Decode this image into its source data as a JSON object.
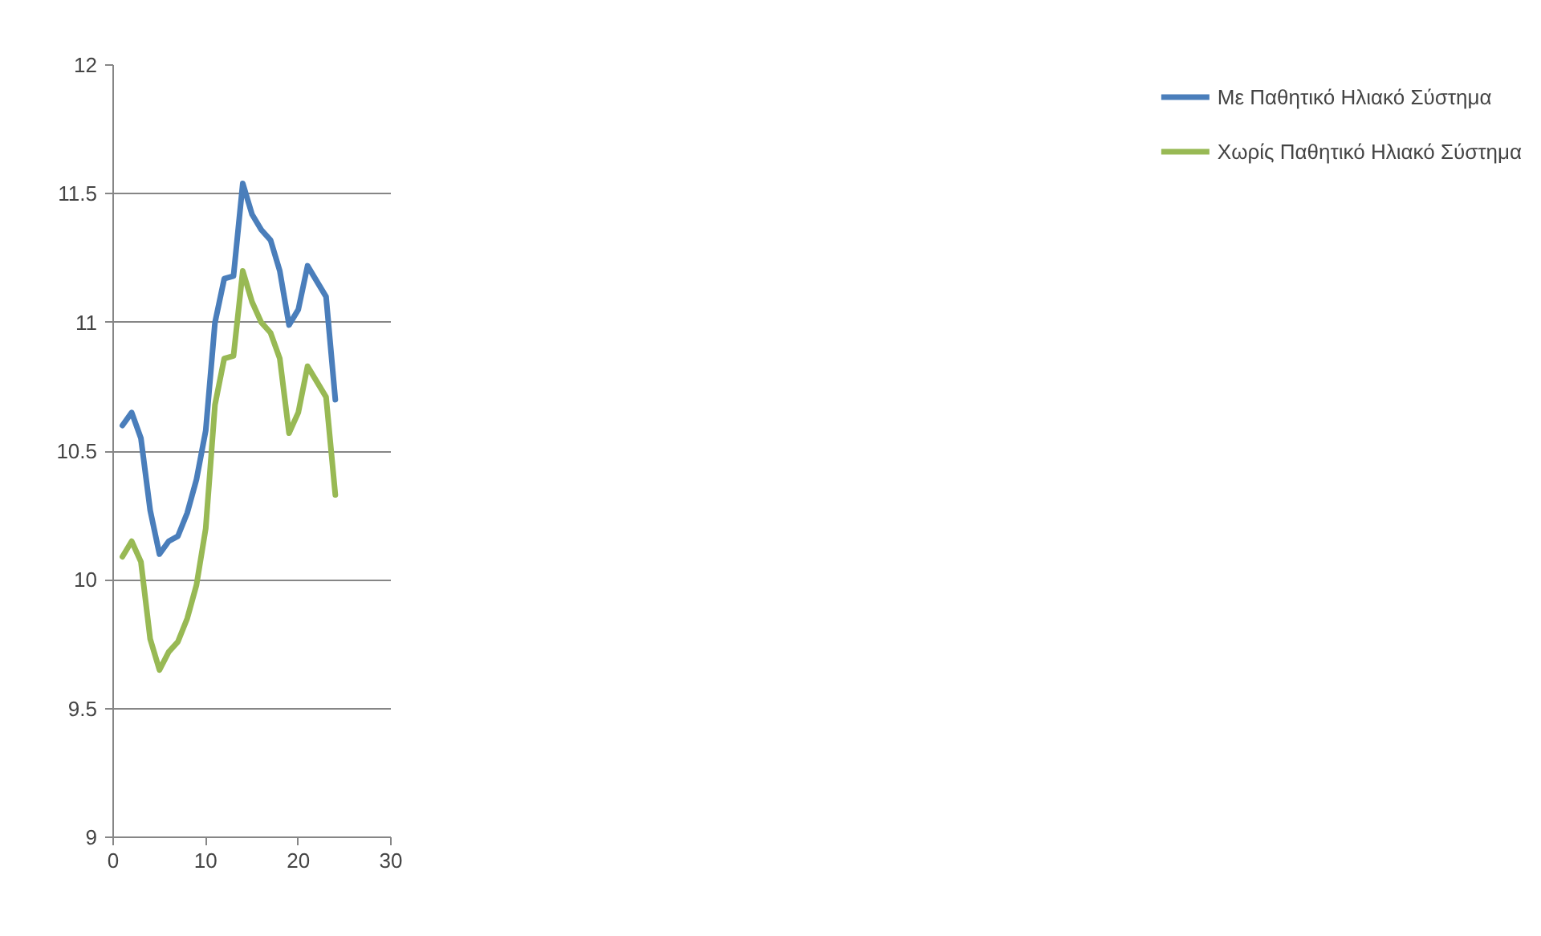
{
  "chart_data": {
    "type": "line",
    "x": [
      1,
      2,
      3,
      4,
      5,
      6,
      7,
      8,
      9,
      10,
      11,
      12,
      13,
      14,
      15,
      16,
      17,
      18,
      19,
      20,
      21,
      22,
      23,
      24
    ],
    "series": [
      {
        "name": "Με Παθητικό Ηλιακό Σύστημα",
        "color": "#4a7ebb",
        "values": [
          10.6,
          10.65,
          10.55,
          10.27,
          10.1,
          10.15,
          10.17,
          10.26,
          10.39,
          10.58,
          11.0,
          11.17,
          11.18,
          11.54,
          11.42,
          11.36,
          11.32,
          11.2,
          10.99,
          11.05,
          11.22,
          11.16,
          11.1,
          10.7
        ]
      },
      {
        "name": "Χωρίς Παθητικό Ηλιακό Σύστημα",
        "color": "#98b954",
        "values": [
          10.09,
          10.15,
          10.07,
          9.77,
          9.65,
          9.72,
          9.76,
          9.85,
          9.98,
          10.2,
          10.68,
          10.86,
          10.87,
          11.2,
          11.08,
          11.0,
          10.96,
          10.86,
          10.57,
          10.65,
          10.83,
          10.77,
          10.71,
          10.33
        ]
      }
    ],
    "xlim": [
      0,
      30
    ],
    "xticks": [
      0,
      10,
      20,
      30
    ],
    "ylim": [
      9,
      12
    ],
    "yticks": [
      9,
      9.5,
      10,
      10.5,
      11,
      11.5,
      12
    ],
    "grid": "y",
    "legend": "right",
    "marker": "none",
    "line_style": "solid"
  }
}
